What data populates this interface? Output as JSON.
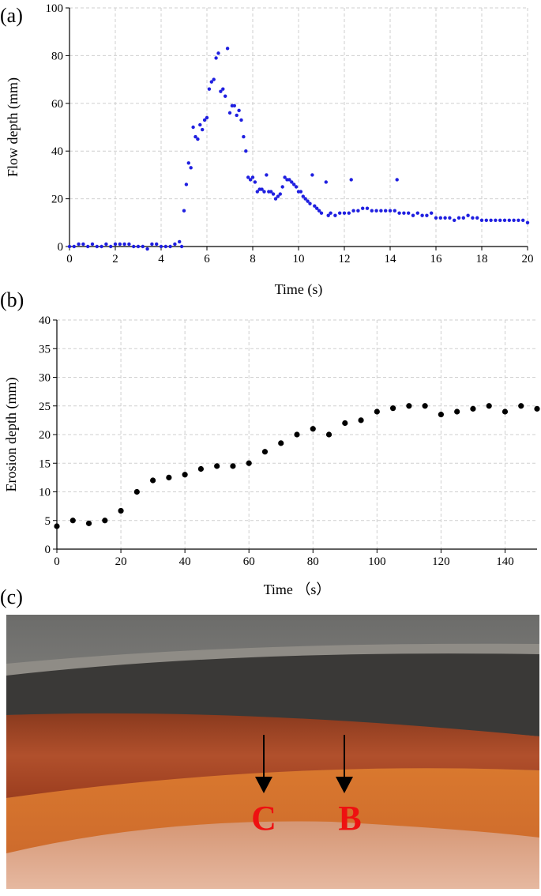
{
  "chart_data": [
    {
      "type": "scatter",
      "panel_label": "(a)",
      "x_label": "Time (s)",
      "y_label": "Flow depth (mm)",
      "color": "#1f1fe0",
      "grid": true,
      "xlim": [
        0,
        20
      ],
      "ylim": [
        0,
        100
      ],
      "xticks": [
        0,
        2,
        4,
        6,
        8,
        10,
        12,
        14,
        16,
        18,
        20
      ],
      "yticks": [
        0,
        20,
        40,
        60,
        80,
        100
      ],
      "x": [
        0,
        0.2,
        0.4,
        0.6,
        0.8,
        1.0,
        1.2,
        1.4,
        1.6,
        1.8,
        2.0,
        2.2,
        2.4,
        2.6,
        2.8,
        3.0,
        3.2,
        3.4,
        3.6,
        3.8,
        4.0,
        4.2,
        4.4,
        4.6,
        4.8,
        4.9,
        5.0,
        5.1,
        5.2,
        5.3,
        5.4,
        5.5,
        5.6,
        5.7,
        5.8,
        5.9,
        6.0,
        6.1,
        6.2,
        6.3,
        6.4,
        6.5,
        6.6,
        6.7,
        6.8,
        6.9,
        7.0,
        7.1,
        7.2,
        7.3,
        7.4,
        7.5,
        7.6,
        7.7,
        7.8,
        7.9,
        8.0,
        8.1,
        8.2,
        8.3,
        8.4,
        8.5,
        8.6,
        8.7,
        8.8,
        8.9,
        9.0,
        9.1,
        9.2,
        9.3,
        9.4,
        9.5,
        9.6,
        9.7,
        9.8,
        9.9,
        10.0,
        10.1,
        10.2,
        10.3,
        10.4,
        10.5,
        10.6,
        10.7,
        10.8,
        10.9,
        11.0,
        11.2,
        11.3,
        11.4,
        11.6,
        11.8,
        12.0,
        12.2,
        12.3,
        12.4,
        12.6,
        12.8,
        13.0,
        13.2,
        13.4,
        13.6,
        13.8,
        14.0,
        14.2,
        14.3,
        14.4,
        14.6,
        14.8,
        15.0,
        15.2,
        15.4,
        15.6,
        15.8,
        16.0,
        16.2,
        16.4,
        16.6,
        16.8,
        17.0,
        17.2,
        17.4,
        17.6,
        17.8,
        18.0,
        18.2,
        18.4,
        18.6,
        18.8,
        19.0,
        19.2,
        19.4,
        19.6,
        19.8,
        20.0
      ],
      "values": [
        0,
        0,
        1,
        1,
        0,
        1,
        0,
        0,
        1,
        0,
        1,
        1,
        1,
        1,
        0,
        0,
        0,
        -1,
        1,
        1,
        0,
        0,
        0,
        1,
        2,
        0,
        15,
        26,
        35,
        33,
        50,
        46,
        45,
        51,
        49,
        53,
        54,
        66,
        69,
        70,
        79,
        81,
        65,
        66,
        63,
        83,
        56,
        59,
        59,
        55,
        57,
        53,
        46,
        40,
        29,
        28,
        29,
        27,
        23,
        24,
        24,
        23,
        30,
        23,
        23,
        22,
        20,
        21,
        22,
        25,
        29,
        28,
        28,
        27,
        26,
        25,
        23,
        23,
        21,
        20,
        19,
        18,
        30,
        17,
        16,
        15,
        14,
        27,
        13,
        14,
        13,
        14,
        14,
        14,
        28,
        15,
        15,
        16,
        16,
        15,
        15,
        15,
        15,
        15,
        15,
        28,
        14,
        14,
        14,
        13,
        14,
        13,
        13,
        14,
        12,
        12,
        12,
        12,
        11,
        12,
        12,
        13,
        12,
        12,
        11,
        11,
        11,
        11,
        11,
        11,
        11,
        11,
        11,
        11,
        10
      ]
    },
    {
      "type": "scatter",
      "panel_label": "(b)",
      "x_label": "Time （s）",
      "y_label": "Erosion depth (mm)",
      "color": "#000000",
      "grid": true,
      "xlim": [
        0,
        150
      ],
      "ylim": [
        0,
        40
      ],
      "xticks": [
        0,
        20,
        40,
        60,
        80,
        100,
        120,
        140
      ],
      "yticks": [
        0,
        5,
        10,
        15,
        20,
        25,
        30,
        35,
        40
      ],
      "x": [
        0,
        5,
        10,
        15,
        20,
        25,
        30,
        35,
        40,
        45,
        50,
        55,
        60,
        65,
        70,
        75,
        80,
        85,
        90,
        95,
        100,
        105,
        110,
        115,
        120,
        125,
        130,
        135,
        140,
        145,
        150
      ],
      "values": [
        4,
        5,
        4.5,
        5,
        6.7,
        10,
        12,
        12.5,
        13,
        14,
        14.5,
        14.5,
        15,
        17,
        18.5,
        20,
        21,
        20,
        22,
        22.5,
        24,
        24.6,
        25,
        25,
        23.5,
        24,
        24.5,
        25,
        24,
        25,
        24.5
      ]
    }
  ],
  "photo": {
    "panel_label": "(c)",
    "markers": [
      "C",
      "B"
    ]
  }
}
